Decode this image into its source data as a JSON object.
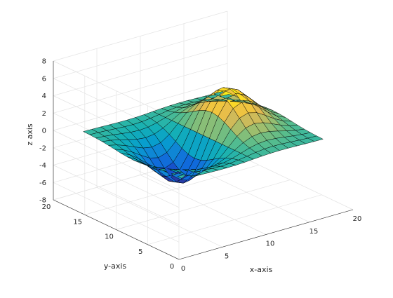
{
  "chart_data": {
    "type": "surface",
    "title": "",
    "xlabel": "x-axis",
    "ylabel": "y-axis",
    "zlabel": "z axis",
    "xlim": [
      0,
      20
    ],
    "ylim": [
      0,
      20
    ],
    "zlim": [
      -8,
      8
    ],
    "x_ticks": [
      "0",
      "5",
      "10",
      "15",
      "20"
    ],
    "y_ticks": [
      "0",
      "5",
      "10",
      "15",
      "20"
    ],
    "z_ticks": [
      "-8",
      "-6",
      "-4",
      "-2",
      "0",
      "2",
      "4",
      "6",
      "8"
    ],
    "grid": true,
    "colormap": "parula",
    "x": [
      2,
      3,
      4,
      5,
      6,
      7,
      8,
      9,
      10,
      11,
      12,
      13,
      14,
      15,
      16,
      17,
      18
    ],
    "y": [
      2,
      3,
      4,
      5,
      6,
      7,
      8,
      9,
      10,
      11,
      12,
      13,
      14,
      15,
      16,
      17,
      18
    ],
    "z_description": "z = 7.5 * x' * exp(-0.5*(x'^2 + y'^2)) with x' = (x-10)/3, y' = (y-10)/3: a positive peak near (y≈5, x≈10), a negative trough near (y≈15, x≈10), flat ridge along x = y"
  }
}
